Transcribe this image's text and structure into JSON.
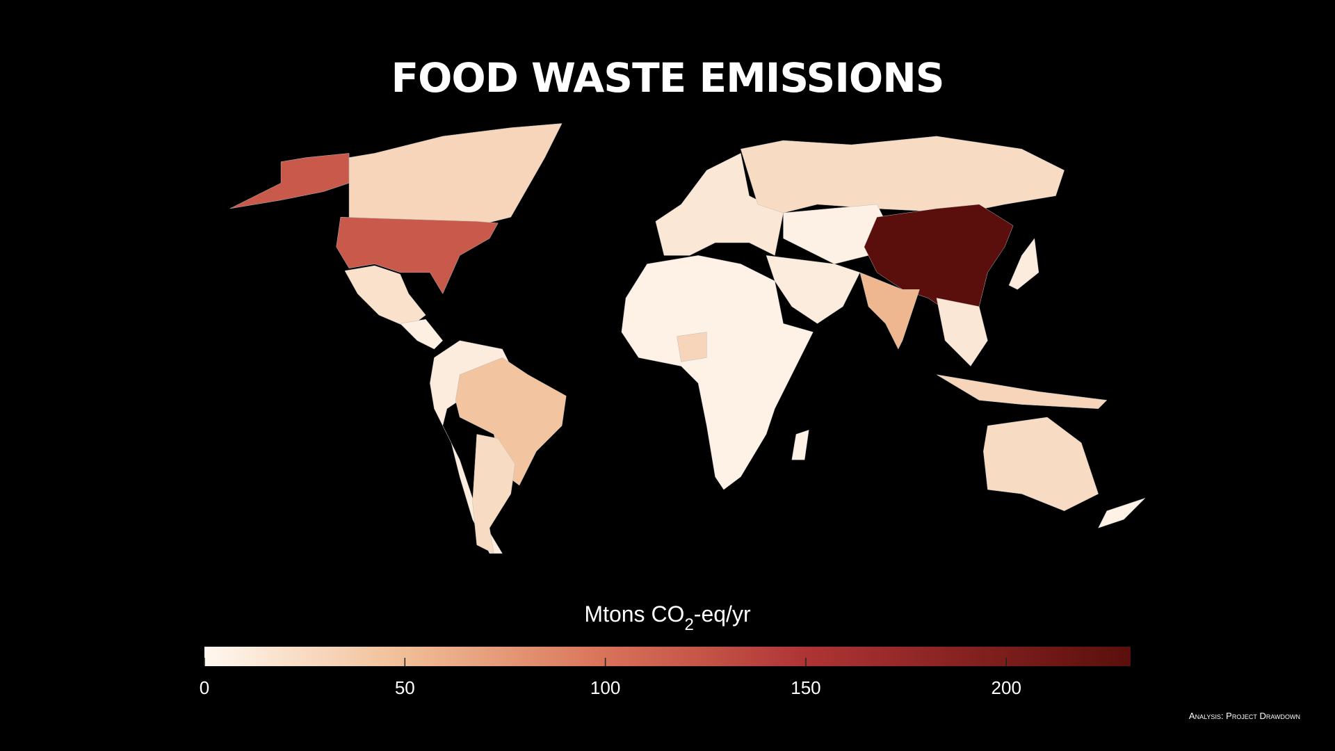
{
  "chart_data": {
    "type": "choropleth",
    "title": "FOOD WASTE EMISSIONS",
    "values": [
      120,
      30,
      120,
      20,
      8,
      10,
      45,
      25,
      15,
      25,
      6,
      231,
      55,
      10,
      5,
      30,
      15,
      30,
      25,
      10,
      5,
      5
    ],
    "colorbar": {
      "label": [
        "Mtons CO",
        "2",
        "-eq/yr"
      ],
      "lim": [
        0,
        231
      ],
      "ticks": [
        0,
        50,
        100,
        150,
        200
      ]
    }
  },
  "credit": "Analysis: Project Drawdown"
}
